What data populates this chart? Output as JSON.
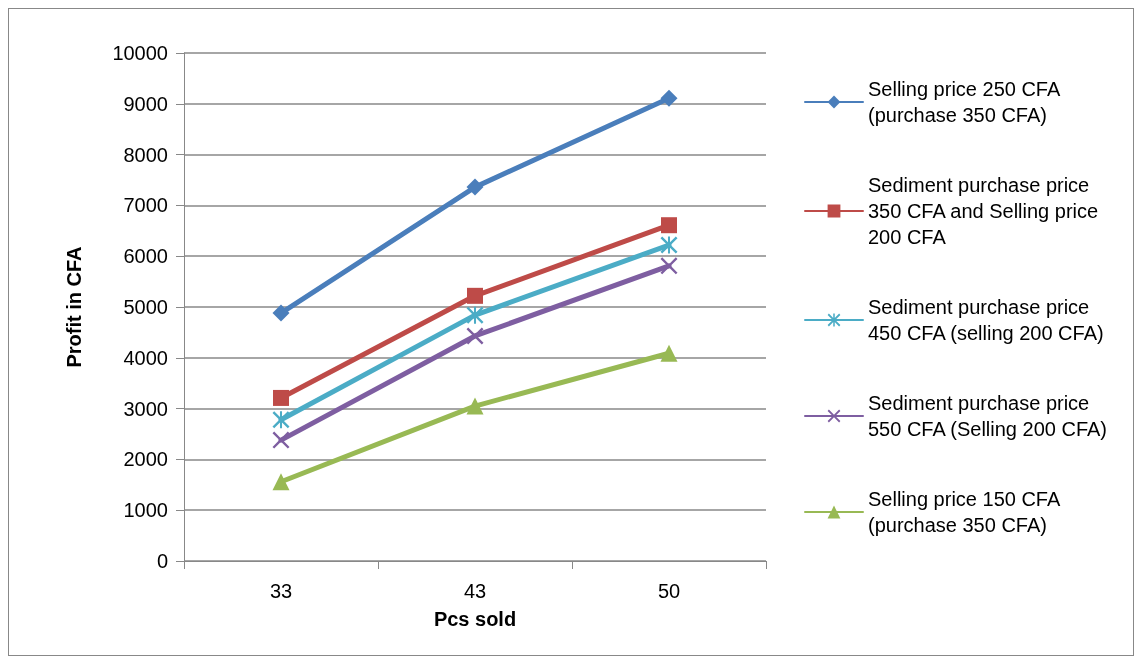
{
  "chart_data": {
    "type": "line",
    "xlabel": "Pcs sold",
    "ylabel": "Profit in CFA",
    "categories": [
      "33",
      "43",
      "50"
    ],
    "series": [
      {
        "name": "Selling price 250 CFA (purchase 350 CFA)",
        "color": "#4a7ebb",
        "marker": "diamond",
        "values": [
          4880,
          7360,
          9110
        ]
      },
      {
        "name": "Sediment purchase price 350 CFA and Selling price 200 CFA",
        "color": "#be4b48",
        "marker": "square",
        "values": [
          3210,
          5220,
          6610
        ]
      },
      {
        "name": "Sediment purchase price 450 CFA (selling 200 CFA)",
        "color": "#4bacc6",
        "marker": "star",
        "values": [
          2780,
          4840,
          6220
        ]
      },
      {
        "name": "Sediment purchase price 550 CFA (Selling 200 CFA)",
        "color": "#7e5ea1",
        "marker": "cross",
        "values": [
          2380,
          4430,
          5810
        ]
      },
      {
        "name": "Selling price 150 CFA (purchase 350 CFA)",
        "color": "#98b954",
        "marker": "triangle",
        "values": [
          1560,
          3050,
          4090
        ]
      }
    ],
    "ylim": [
      0,
      10000
    ],
    "yticks": [
      0,
      1000,
      2000,
      3000,
      4000,
      5000,
      6000,
      7000,
      8000,
      9000,
      10000
    ],
    "grid": "y",
    "legend": "right",
    "line_style": "solid"
  }
}
